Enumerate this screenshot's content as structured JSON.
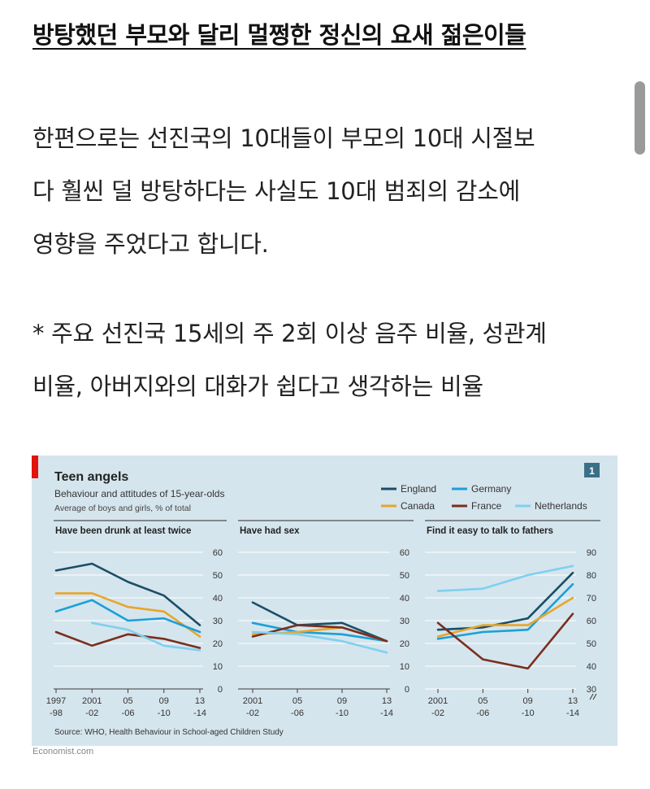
{
  "headline": "방탕했던 부모와 달리 멀쩡한 정신의 요새 젊은이들",
  "paragraph1": [
    "한편으로는 선진국의 10대들이 부모의 10대 시절보",
    "다 훨씬 덜 방탕하다는 사실도 10대 범죄의 감소에",
    "영향을 주었다고 합니다."
  ],
  "paragraph2": [
    "* 주요 선진국 15세의 주 2회 이상 음주 비율, 성관계",
    "비율, 아버지와의 대화가 쉽다고 생각하는 비율"
  ],
  "credit": "Economist.com",
  "chart": {
    "title": "Teen angels",
    "subtitle": "Behaviour and attitudes of 15-year-olds",
    "note": "Average of boys and girls, % of total",
    "number_badge": "1",
    "source": "Source: WHO, Health Behaviour in School-aged Children Study",
    "legend": [
      {
        "name": "England",
        "color": "#1b4e66"
      },
      {
        "name": "Germany",
        "color": "#1aa0d8"
      },
      {
        "name": "Canada",
        "color": "#e8a52a"
      },
      {
        "name": "France",
        "color": "#7a2e1f"
      },
      {
        "name": "Netherlands",
        "color": "#7fd0ef"
      }
    ]
  },
  "chart_data": [
    {
      "type": "line",
      "title": "Have been drunk at least twice",
      "categories": [
        "1997-98",
        "2001-02",
        "05-06",
        "09-10",
        "13-14"
      ],
      "tick_labels": [
        [
          "1997",
          "-98"
        ],
        [
          "2001",
          "-02"
        ],
        [
          "05",
          "-06"
        ],
        [
          "09",
          "-10"
        ],
        [
          "13",
          "-14"
        ]
      ],
      "ylim": [
        0,
        60
      ],
      "yticks": [
        0,
        10,
        20,
        30,
        40,
        50,
        60
      ],
      "series": [
        {
          "name": "England",
          "values": [
            52,
            55,
            47,
            41,
            28
          ]
        },
        {
          "name": "Canada",
          "values": [
            42,
            42,
            36,
            34,
            23
          ]
        },
        {
          "name": "Germany",
          "values": [
            34,
            39,
            30,
            31,
            25
          ]
        },
        {
          "name": "France",
          "values": [
            25,
            19,
            24,
            22,
            18
          ]
        },
        {
          "name": "Netherlands",
          "values": [
            null,
            29,
            26,
            19,
            17
          ]
        }
      ]
    },
    {
      "type": "line",
      "title": "Have had sex",
      "categories": [
        "2001-02",
        "05-06",
        "09-10",
        "13-14"
      ],
      "tick_labels": [
        [
          "2001",
          "-02"
        ],
        [
          "05",
          "-06"
        ],
        [
          "09",
          "-10"
        ],
        [
          "13",
          "-14"
        ]
      ],
      "ylim": [
        0,
        60
      ],
      "yticks": [
        0,
        10,
        20,
        30,
        40,
        50,
        60
      ],
      "series": [
        {
          "name": "England",
          "values": [
            38,
            28,
            29,
            21
          ]
        },
        {
          "name": "Germany",
          "values": [
            29,
            25,
            24,
            21
          ]
        },
        {
          "name": "Canada",
          "values": [
            24,
            25,
            27,
            21
          ]
        },
        {
          "name": "France",
          "values": [
            23,
            28,
            27,
            21
          ]
        },
        {
          "name": "Netherlands",
          "values": [
            25,
            24,
            21,
            16
          ]
        }
      ]
    },
    {
      "type": "line",
      "title": "Find it easy to talk to fathers",
      "categories": [
        "2001-02",
        "05-06",
        "09-10",
        "13-14"
      ],
      "tick_labels": [
        [
          "2001",
          "-02"
        ],
        [
          "05",
          "-06"
        ],
        [
          "09",
          "-10"
        ],
        [
          "13",
          "-14"
        ]
      ],
      "ylim": [
        30,
        90
      ],
      "axis_break": true,
      "yticks": [
        30,
        40,
        50,
        60,
        70,
        80,
        90
      ],
      "series": [
        {
          "name": "Netherlands",
          "values": [
            73,
            74,
            80,
            84
          ]
        },
        {
          "name": "England",
          "values": [
            56,
            57,
            61,
            81
          ]
        },
        {
          "name": "Germany",
          "values": [
            52,
            55,
            56,
            76
          ]
        },
        {
          "name": "Canada",
          "values": [
            53,
            58,
            58,
            70
          ]
        },
        {
          "name": "France",
          "values": [
            59,
            43,
            39,
            63
          ]
        }
      ]
    }
  ]
}
